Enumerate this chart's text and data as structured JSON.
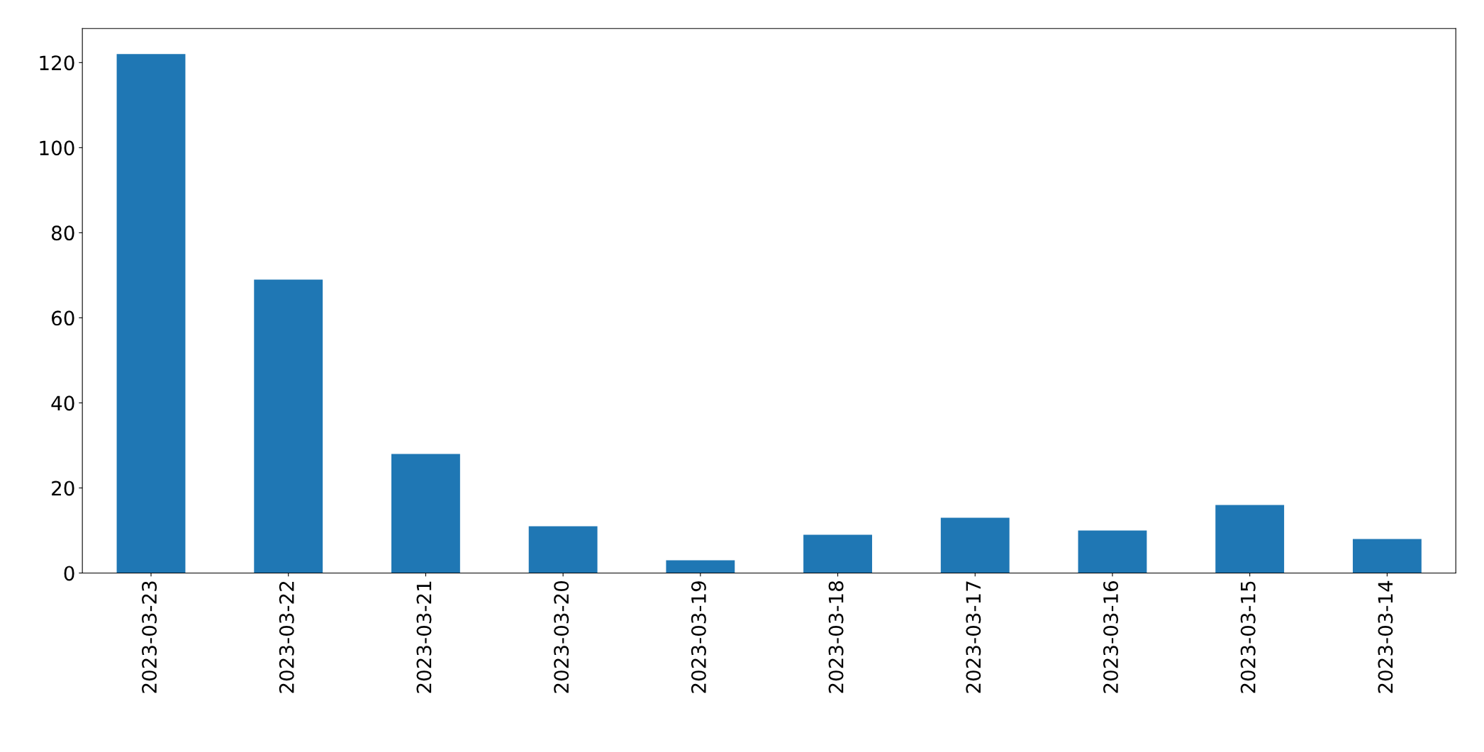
{
  "chart_data": {
    "type": "bar",
    "categories": [
      "2023-03-23",
      "2023-03-22",
      "2023-03-21",
      "2023-03-20",
      "2023-03-19",
      "2023-03-18",
      "2023-03-17",
      "2023-03-16",
      "2023-03-15",
      "2023-03-14"
    ],
    "values": [
      122,
      69,
      28,
      11,
      3,
      9,
      13,
      10,
      16,
      8
    ],
    "color": "#1f77b4",
    "ylim": [
      0,
      128
    ],
    "yticks": [
      0,
      20,
      40,
      60,
      80,
      100,
      120
    ],
    "grid": false,
    "legend": false
  }
}
